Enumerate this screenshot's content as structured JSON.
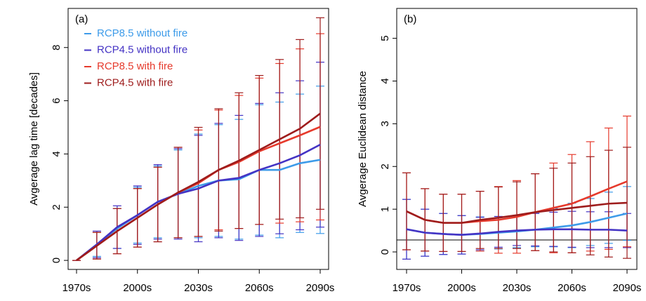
{
  "chart_data": [
    {
      "type": "line",
      "annotation": "(a)",
      "y_label": "Avgerage lag time [decades]",
      "categories": [
        "1970s",
        null,
        null,
        "2000s",
        null,
        null,
        "2030s",
        null,
        null,
        "2060s",
        null,
        null,
        "2090s"
      ],
      "ylim": [
        -0.34,
        9.47
      ],
      "yticks": [
        0,
        2,
        4,
        6,
        8
      ],
      "legend": "top-left",
      "series": [
        {
          "name": "RCP8.5 without fire",
          "color": "#3d9be9",
          "values": [
            0,
            0.6,
            1.2,
            1.7,
            2.2,
            2.5,
            2.8,
            3.0,
            3.05,
            3.4,
            3.4,
            3.65,
            3.78
          ],
          "errors": [
            0,
            0.45,
            0.75,
            1.05,
            1.35,
            1.65,
            1.95,
            2.1,
            2.25,
            2.45,
            2.55,
            2.6,
            2.77
          ]
        },
        {
          "name": "RCP4.5 without fire",
          "color": "#4433c4",
          "values": [
            0,
            0.6,
            1.25,
            1.7,
            2.2,
            2.5,
            2.7,
            3.0,
            3.1,
            3.4,
            3.65,
            3.95,
            4.35
          ],
          "errors": [
            0,
            0.5,
            0.8,
            1.1,
            1.4,
            1.7,
            2.0,
            2.15,
            2.35,
            2.5,
            2.65,
            2.8,
            3.1
          ]
        },
        {
          "name": "RCP8.5 with fire",
          "color": "#e63a2c",
          "values": [
            0,
            0.55,
            1.1,
            1.6,
            2.1,
            2.55,
            2.9,
            3.4,
            3.7,
            4.1,
            4.4,
            4.7,
            5.02
          ],
          "errors": [
            0,
            0.5,
            0.85,
            1.1,
            1.4,
            1.7,
            2.0,
            2.25,
            2.5,
            2.75,
            3.0,
            3.25,
            3.5
          ]
        },
        {
          "name": "RCP4.5 with fire",
          "color": "#9e1c1c",
          "values": [
            0,
            0.55,
            1.1,
            1.6,
            2.1,
            2.55,
            2.95,
            3.4,
            3.75,
            4.15,
            4.55,
            4.95,
            5.52
          ],
          "errors": [
            0,
            0.5,
            0.85,
            1.1,
            1.4,
            1.7,
            2.05,
            2.3,
            2.55,
            2.8,
            3.0,
            3.35,
            3.6
          ]
        }
      ]
    },
    {
      "type": "line",
      "annotation": "(b)",
      "y_label": "Avgerage Euclidean distance",
      "categories": [
        "1970s",
        null,
        null,
        "2000s",
        null,
        null,
        "2030s",
        null,
        null,
        "2060s",
        null,
        null,
        "2090s"
      ],
      "ylim": [
        -0.41,
        5.7
      ],
      "yticks": [
        0,
        1,
        2,
        3,
        4,
        5
      ],
      "hline": 0.28,
      "series": [
        {
          "color": "#3d9be9",
          "values": [
            0.53,
            0.45,
            0.42,
            0.4,
            0.42,
            0.45,
            0.48,
            0.52,
            0.57,
            0.62,
            0.7,
            0.8,
            0.9
          ],
          "errors": [
            0.7,
            0.55,
            0.48,
            0.45,
            0.4,
            0.38,
            0.38,
            0.4,
            0.45,
            0.52,
            0.55,
            0.6,
            0.63
          ]
        },
        {
          "color": "#4433c4",
          "values": [
            0.53,
            0.45,
            0.42,
            0.4,
            0.43,
            0.47,
            0.5,
            0.52,
            0.53,
            0.53,
            0.52,
            0.52,
            0.5
          ],
          "errors": [
            0.7,
            0.55,
            0.48,
            0.45,
            0.38,
            0.36,
            0.35,
            0.38,
            0.4,
            0.42,
            0.42,
            0.42,
            0.4
          ]
        },
        {
          "color": "#e63a2c",
          "values": [
            0.95,
            0.75,
            0.68,
            0.68,
            0.72,
            0.75,
            0.82,
            0.93,
            1.03,
            1.13,
            1.3,
            1.48,
            1.65
          ],
          "errors": [
            0.9,
            0.73,
            0.67,
            0.67,
            0.7,
            0.78,
            0.85,
            0.9,
            1.05,
            1.15,
            1.28,
            1.42,
            1.53
          ]
        },
        {
          "color": "#9e1c1c",
          "values": [
            0.95,
            0.75,
            0.68,
            0.68,
            0.75,
            0.8,
            0.86,
            0.93,
            0.98,
            1.03,
            1.08,
            1.13,
            1.15
          ],
          "errors": [
            0.9,
            0.73,
            0.67,
            0.67,
            0.67,
            0.72,
            0.78,
            0.9,
            0.98,
            1.05,
            1.15,
            1.25,
            1.3
          ]
        }
      ]
    }
  ]
}
